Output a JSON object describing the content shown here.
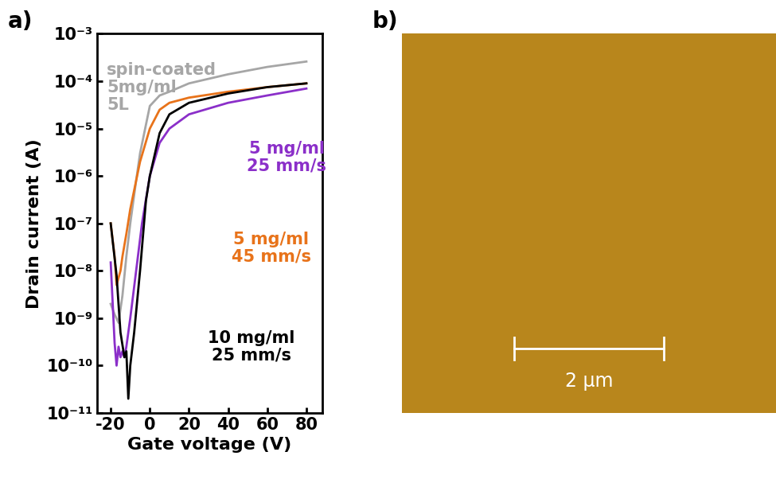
{
  "chart_data": [
    {
      "type": "line",
      "title": "a)",
      "x_label": "Gate voltage (V)",
      "y_label": "Drain current (A)",
      "log": "y",
      "xlim": [
        -27,
        88
      ],
      "xticks": [
        -20,
        0,
        20,
        40,
        60,
        80
      ],
      "ylim": [
        1e-11,
        0.001
      ],
      "yticks": [
        {
          "value": 1e-11,
          "label": "10⁻¹¹"
        },
        {
          "value": 1e-10,
          "label": "10⁻¹⁰"
        },
        {
          "value": 1e-09,
          "label": "10⁻⁹"
        },
        {
          "value": 1e-08,
          "label": "10⁻⁸"
        },
        {
          "value": 1e-07,
          "label": "10⁻⁷"
        },
        {
          "value": 1e-06,
          "label": "10⁻⁶"
        },
        {
          "value": 1e-05,
          "label": "10⁻⁵"
        },
        {
          "value": 0.0001,
          "label": "10⁻⁴"
        },
        {
          "value": 0.001,
          "label": "10⁻³"
        }
      ],
      "series": [
        {
          "name": "spin-coated\n5mg/ml\n5L",
          "color": "#a6a6a6",
          "x": [
            -20,
            -18,
            -16,
            -14,
            -12,
            -10,
            -7,
            -5,
            -2,
            0,
            5,
            10,
            20,
            40,
            60,
            80
          ],
          "values": [
            2e-09,
            1.2e-09,
            8e-10,
            3e-09,
            2e-08,
            1e-07,
            8e-07,
            3e-06,
            1.2e-05,
            3e-05,
            5e-05,
            6e-05,
            9e-05,
            0.00014,
            0.0002,
            0.00026
          ]
        },
        {
          "name": "5 mg/ml\n25 mm/s",
          "color": "#8b2fc9",
          "x": [
            -20,
            -18,
            -17,
            -16,
            -15,
            -14,
            -13,
            -12,
            -10,
            -7,
            -4,
            0,
            5,
            10,
            20,
            40,
            60,
            80
          ],
          "values": [
            1.5e-08,
            3e-10,
            1e-10,
            2.5e-10,
            1.5e-10,
            2e-10,
            1.5e-10,
            2.5e-10,
            1e-09,
            1e-08,
            1e-07,
            1e-06,
            5e-06,
            1e-05,
            2e-05,
            3.5e-05,
            5e-05,
            7e-05
          ]
        },
        {
          "name": "5 mg/ml\n45 mm/s",
          "color": "#e8731a",
          "x": [
            -20,
            -18,
            -17,
            -15,
            -14,
            -12,
            -10,
            -5,
            0,
            5,
            10,
            20,
            40,
            60,
            80
          ],
          "values": [
            1e-07,
            2e-08,
            5e-09,
            1e-08,
            2e-08,
            6e-08,
            2e-07,
            2e-06,
            1e-05,
            2.5e-05,
            3.5e-05,
            4.5e-05,
            6e-05,
            7.5e-05,
            9e-05
          ]
        },
        {
          "name": "10 mg/ml\n25 mm/s",
          "color": "#000000",
          "x": [
            -20,
            -17,
            -15,
            -13,
            -12,
            -11,
            -10,
            -8,
            -5,
            -2,
            0,
            5,
            10,
            20,
            40,
            60,
            80
          ],
          "values": [
            1e-07,
            8e-09,
            5e-10,
            1.5e-10,
            2e-10,
            2e-11,
            1e-10,
            5e-10,
            1e-08,
            3e-07,
            1e-06,
            8e-06,
            2e-05,
            3.5e-05,
            5.5e-05,
            7.5e-05,
            9e-05
          ]
        }
      ]
    },
    {
      "type": "image",
      "title": "b)",
      "color": "#b8861c",
      "width": 5,
      "height": 5,
      "scale_bar": {
        "length": 2,
        "label": "2 µm"
      }
    }
  ]
}
